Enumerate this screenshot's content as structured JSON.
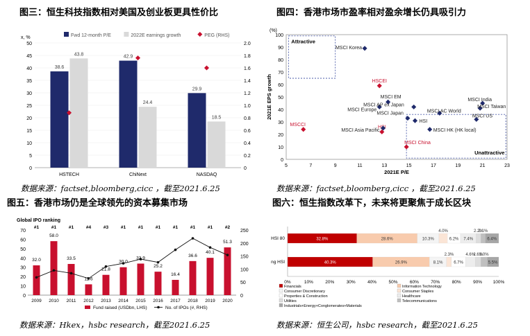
{
  "titles": {
    "fig3": "图三：恒生科技指数相对美国及创业板更具性价比",
    "fig4": "图四：香港市场市盈率相对盈余增长仍具吸引力",
    "fig5": "图五：香港市场仍是全球领先的资本募集市场",
    "fig6": "图六：恒生指数改革下，未来将更聚焦于成长区块"
  },
  "sources": {
    "fig3": "数据来源：factset,bloomberg,cicc ，截至2021.6.25",
    "fig4": "数据来源：factset,bloomberg,cicc ，截至2021.6.25",
    "fig5": "数据来源：Hkex，hsbc research，截至2021.6.25",
    "fig6": "数据来源：恒生公司，hsbc research，截至2021.6.25"
  },
  "colors": {
    "red": "#c8102e",
    "grey": "#d9d9d9",
    "navy": "#1f2a6b",
    "peach": "#f4b183",
    "black": "#111111"
  },
  "chart_data": [
    {
      "id": "fig3",
      "type": "bar",
      "unit_left": "x, %",
      "categories": [
        "HSTECH",
        "ChiNext",
        "NASDAQ"
      ],
      "series": [
        {
          "name": "Fwd 12-month P/E",
          "values": [
            38.6,
            42.9,
            29.9
          ]
        },
        {
          "name": "2022E earnings growth",
          "values": [
            43.8,
            24.4,
            18.5
          ]
        },
        {
          "name": "PEG (RHS)",
          "values": [
            0.88,
            1.76,
            1.6
          ],
          "axis": "right"
        }
      ],
      "ylim": [
        0,
        50
      ],
      "y2lim": [
        0,
        2.0
      ],
      "yticks": [
        "0",
        "5",
        "10",
        "15",
        "20",
        "25",
        "30",
        "35",
        "40",
        "45",
        "50"
      ],
      "y2ticks": [
        "0",
        "0.2",
        "0.4",
        "0.6",
        "0.8",
        "1.0",
        "1.2",
        "1.4",
        "1.6",
        "1.8",
        "2.0"
      ]
    },
    {
      "id": "fig4",
      "type": "scatter",
      "xlabel": "2021E P/E",
      "ylabel": "2021E EPS growth",
      "unit": "(%)",
      "xlim": [
        5,
        23
      ],
      "ylim": [
        0,
        100
      ],
      "xticks": [
        "5",
        "7",
        "9",
        "11",
        "13",
        "15",
        "17",
        "19",
        "21",
        "23"
      ],
      "yticks": [
        "0",
        "10",
        "20",
        "30",
        "40",
        "50",
        "60",
        "70",
        "80",
        "90",
        "100"
      ],
      "zones": {
        "attractive": "Attractive",
        "unattractive": "Unattractive"
      },
      "points": [
        {
          "label": "MSCI Korea",
          "x": 11.4,
          "y": 89,
          "hl": false
        },
        {
          "label": "HSCEI",
          "x": 12.6,
          "y": 59,
          "hl": true
        },
        {
          "label": "MSCI EM",
          "x": 13.3,
          "y": 46,
          "hl": false
        },
        {
          "label": "MSCI Europe",
          "x": 12.6,
          "y": 42,
          "hl": false
        },
        {
          "label": "MSCI AP ex Japan",
          "x": 15.4,
          "y": 42,
          "hl": false
        },
        {
          "label": "MSCI AC World",
          "x": 17.5,
          "y": 37,
          "hl": false
        },
        {
          "label": "MSCI India",
          "x": 21.0,
          "y": 45,
          "hl": false
        },
        {
          "label": "MSCI Taiwan",
          "x": 20.8,
          "y": 41,
          "hl": false
        },
        {
          "label": "MSCI Japan",
          "x": 14.9,
          "y": 33,
          "hl": false
        },
        {
          "label": "MSCI US",
          "x": 20.5,
          "y": 32,
          "hl": false
        },
        {
          "label": "HSI",
          "x": 15.5,
          "y": 31,
          "hl": false
        },
        {
          "label": "HSI",
          "x": 12.8,
          "y": 22,
          "hl": true
        },
        {
          "label": "MSCI HK (HK local)",
          "x": 16.7,
          "y": 24,
          "hl": false
        },
        {
          "label": "MSCI Asia Pacific",
          "x": 12.9,
          "y": 25,
          "hl": false
        },
        {
          "label": "MSCI China",
          "x": 14.8,
          "y": 10,
          "hl": true
        },
        {
          "label": "MSCCI",
          "x": 6.4,
          "y": 24,
          "hl": true
        }
      ]
    },
    {
      "id": "fig5",
      "type": "bar",
      "title": "Global IPO ranking",
      "categories": [
        "2009",
        "2010",
        "2011",
        "2012",
        "2013",
        "2014",
        "2015",
        "2016",
        "2017",
        "2018",
        "2019",
        "2020"
      ],
      "ranks": [
        "#1",
        "#1",
        "#1",
        "#4",
        "#3",
        "#1",
        "#1",
        "#1",
        "#1",
        "#1",
        "#1",
        "#2"
      ],
      "series": [
        {
          "name": "Fund raised (USDbn, LHS)",
          "values": [
            32.0,
            58.0,
            33.5,
            11.6,
            21.8,
            30.0,
            33.9,
            25.2,
            16.4,
            36.6,
            40.1,
            51.3
          ]
        },
        {
          "name": "No. of IPOs (#, RHS)",
          "values": [
            68,
            95,
            84,
            64,
            110,
            122,
            138,
            126,
            174,
            218,
            183,
            154
          ]
        }
      ],
      "ylim": [
        0,
        70
      ],
      "y2lim": [
        0,
        250
      ],
      "yticks": [
        "0",
        "10",
        "20",
        "30",
        "40",
        "50",
        "60",
        "70"
      ],
      "y2ticks": [
        "0",
        "50",
        "100",
        "150",
        "200",
        "250"
      ]
    },
    {
      "id": "fig6",
      "type": "bar",
      "subtype": "stacked-horizontal-100",
      "categories": [
        "HSI 80",
        "Existing HSI"
      ],
      "series": [
        {
          "name": "Financials",
          "color": "#c00000",
          "values": [
            32.8,
            40.3
          ],
          "labels": [
            "32.8%",
            "40.3%"
          ]
        },
        {
          "name": "Information Technology",
          "color": "#f8cbad",
          "values": [
            28.6,
            26.9
          ],
          "labels": [
            "28.6%",
            "26.9%"
          ]
        },
        {
          "name": "Consumer Discretionary",
          "color": "#f4f4f4",
          "values": [
            10.3,
            8.1
          ],
          "labels": [
            "10.3%",
            "8.1%"
          ]
        },
        {
          "name": "Consumer Staples",
          "color": "#fbe5d6",
          "values": [
            4.0,
            2.3
          ],
          "labels": [
            "4.0%",
            "2.3%"
          ]
        },
        {
          "name": "Properties & Construction",
          "color": "#ffffff",
          "values": [
            6.2,
            6.7
          ],
          "labels": [
            "6.2%",
            "6.7%"
          ]
        },
        {
          "name": "Healthcare",
          "color": "#ededed",
          "values": [
            7.4,
            4.6
          ],
          "labels": [
            "7.4%",
            "4.6%"
          ]
        },
        {
          "name": "Utilities",
          "color": "#dddddd",
          "values": [
            2.2,
            2.6
          ],
          "labels": [
            "2.2%",
            "2.6%"
          ]
        },
        {
          "name": "Telecommunications",
          "color": "#bfbfbf",
          "values": [
            2.1,
            3.0
          ],
          "labels": [
            "2.1%",
            "3.0%"
          ]
        },
        {
          "name": "Industrials+Energy+Conglomerates+Materials",
          "color": "#a6a6a6",
          "values": [
            6.4,
            5.5
          ],
          "labels": [
            "6.4%",
            "5.5%"
          ]
        }
      ],
      "xticks": [
        "0%",
        "10%",
        "20%",
        "30%",
        "40%",
        "50%",
        "60%",
        "70%",
        "80%",
        "90%",
        "100%"
      ]
    }
  ]
}
